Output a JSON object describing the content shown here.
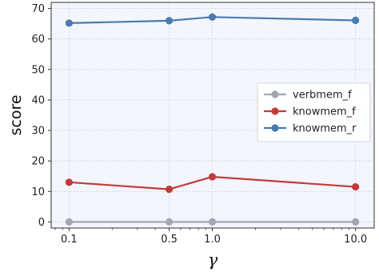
{
  "chart_data": {
    "type": "line",
    "xlabel": "γ",
    "ylabel": "score",
    "xscale": "log",
    "xlim": [
      0.075,
      13.5
    ],
    "ylim": [
      -2,
      72
    ],
    "x_ticks": [
      0.1,
      0.5,
      1.0,
      10.0
    ],
    "x_tick_labels": [
      "0.1",
      "0.5",
      "1.0",
      "10.0"
    ],
    "y_ticks": [
      0,
      10,
      20,
      30,
      40,
      50,
      60,
      70
    ],
    "y_tick_labels": [
      "0",
      "10",
      "20",
      "30",
      "40",
      "50",
      "60",
      "70"
    ],
    "grid": true,
    "legend_position": "center-right",
    "background": "#f3f6fc",
    "x": [
      0.1,
      0.5,
      1.0,
      10.0
    ],
    "series": [
      {
        "name": "verbmem_f",
        "values": [
          0,
          0,
          0,
          0
        ],
        "color": "#a3a7b3"
      },
      {
        "name": "knowmem_f",
        "values": [
          13,
          10.7,
          14.8,
          11.5
        ],
        "color": "#c23b3b"
      },
      {
        "name": "knowmem_r",
        "values": [
          65.2,
          66,
          67.2,
          66.1
        ],
        "color": "#4a7bb0"
      }
    ]
  }
}
